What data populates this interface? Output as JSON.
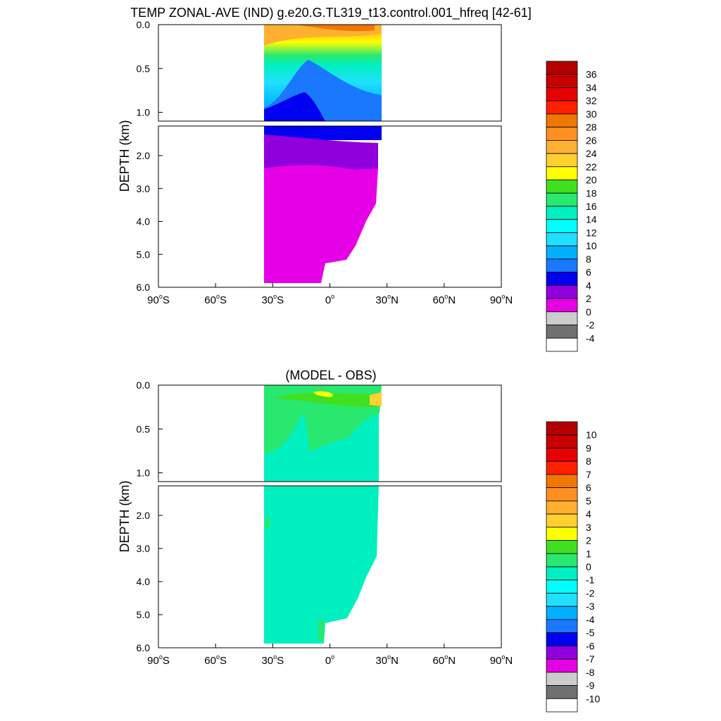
{
  "chart_data": [
    {
      "type": "heatmap",
      "title": "TEMP ZONAL-AVE (IND) g.e20.G.TL319_t13.control.001_hfreq [42-61]",
      "ylabel": "DEPTH (km)",
      "xlim": [
        -90,
        90
      ],
      "ylim": [
        0,
        6
      ],
      "upper_ticks": [
        "0.0",
        "0.5",
        "1.0"
      ],
      "lower_ticks": [
        "2.0",
        "3.0",
        "4.0",
        "5.0",
        "6.0"
      ],
      "x_ticks": [
        {
          "deg": "90",
          "hemi": "S"
        },
        {
          "deg": "60",
          "hemi": "S"
        },
        {
          "deg": "30",
          "hemi": "S"
        },
        {
          "deg": "0",
          "hemi": ""
        },
        {
          "deg": "30",
          "hemi": "N"
        },
        {
          "deg": "60",
          "hemi": "N"
        },
        {
          "deg": "90",
          "hemi": "N"
        }
      ],
      "colorbar": {
        "labels": [
          "36",
          "34",
          "32",
          "30",
          "28",
          "26",
          "24",
          "22",
          "20",
          "18",
          "16",
          "14",
          "12",
          "10",
          "8",
          "6",
          "4",
          "2",
          "0",
          "-2",
          "-4"
        ],
        "colors": [
          "#b40000",
          "#c80000",
          "#e60000",
          "#ff2000",
          "#f07800",
          "#ff9020",
          "#ffb030",
          "#ffd030",
          "#ffff00",
          "#40e020",
          "#28e870",
          "#00f0c0",
          "#00ffff",
          "#20e0ff",
          "#00b0ff",
          "#1a78ff",
          "#0000f0",
          "#9000dc",
          "#e600e6",
          "#cccccc",
          "#707070",
          "#ffffff"
        ]
      },
      "note_values": {
        "surface_max_approx": 28,
        "thermocline_depth_km": 1.0,
        "deep_water": "0 to 2"
      }
    },
    {
      "type": "heatmap",
      "title": "(MODEL - OBS)",
      "ylabel": "DEPTH (km)",
      "xlim": [
        -90,
        90
      ],
      "ylim": [
        0,
        6
      ],
      "upper_ticks": [
        "0.0",
        "0.5",
        "1.0"
      ],
      "lower_ticks": [
        "2.0",
        "3.0",
        "4.0",
        "5.0",
        "6.0"
      ],
      "x_ticks": [
        {
          "deg": "90",
          "hemi": "S"
        },
        {
          "deg": "60",
          "hemi": "S"
        },
        {
          "deg": "30",
          "hemi": "S"
        },
        {
          "deg": "0",
          "hemi": ""
        },
        {
          "deg": "30",
          "hemi": "N"
        },
        {
          "deg": "60",
          "hemi": "N"
        },
        {
          "deg": "90",
          "hemi": "N"
        }
      ],
      "colorbar": {
        "labels": [
          "10",
          "9",
          "8",
          "7",
          "6",
          "5",
          "4",
          "3",
          "2",
          "1",
          "0",
          "-1",
          "-2",
          "-3",
          "-4",
          "-5",
          "-6",
          "-7",
          "-8",
          "-9",
          "-10"
        ],
        "colors": [
          "#b40000",
          "#c80000",
          "#e60000",
          "#ff2000",
          "#f07800",
          "#ff9020",
          "#ffb030",
          "#ffd030",
          "#ffff00",
          "#40e020",
          "#28e870",
          "#00f0c0",
          "#00ffff",
          "#20e0ff",
          "#00b0ff",
          "#1a78ff",
          "#0000f0",
          "#9000dc",
          "#e600e6",
          "#cccccc",
          "#707070",
          "#ffffff"
        ]
      }
    }
  ]
}
